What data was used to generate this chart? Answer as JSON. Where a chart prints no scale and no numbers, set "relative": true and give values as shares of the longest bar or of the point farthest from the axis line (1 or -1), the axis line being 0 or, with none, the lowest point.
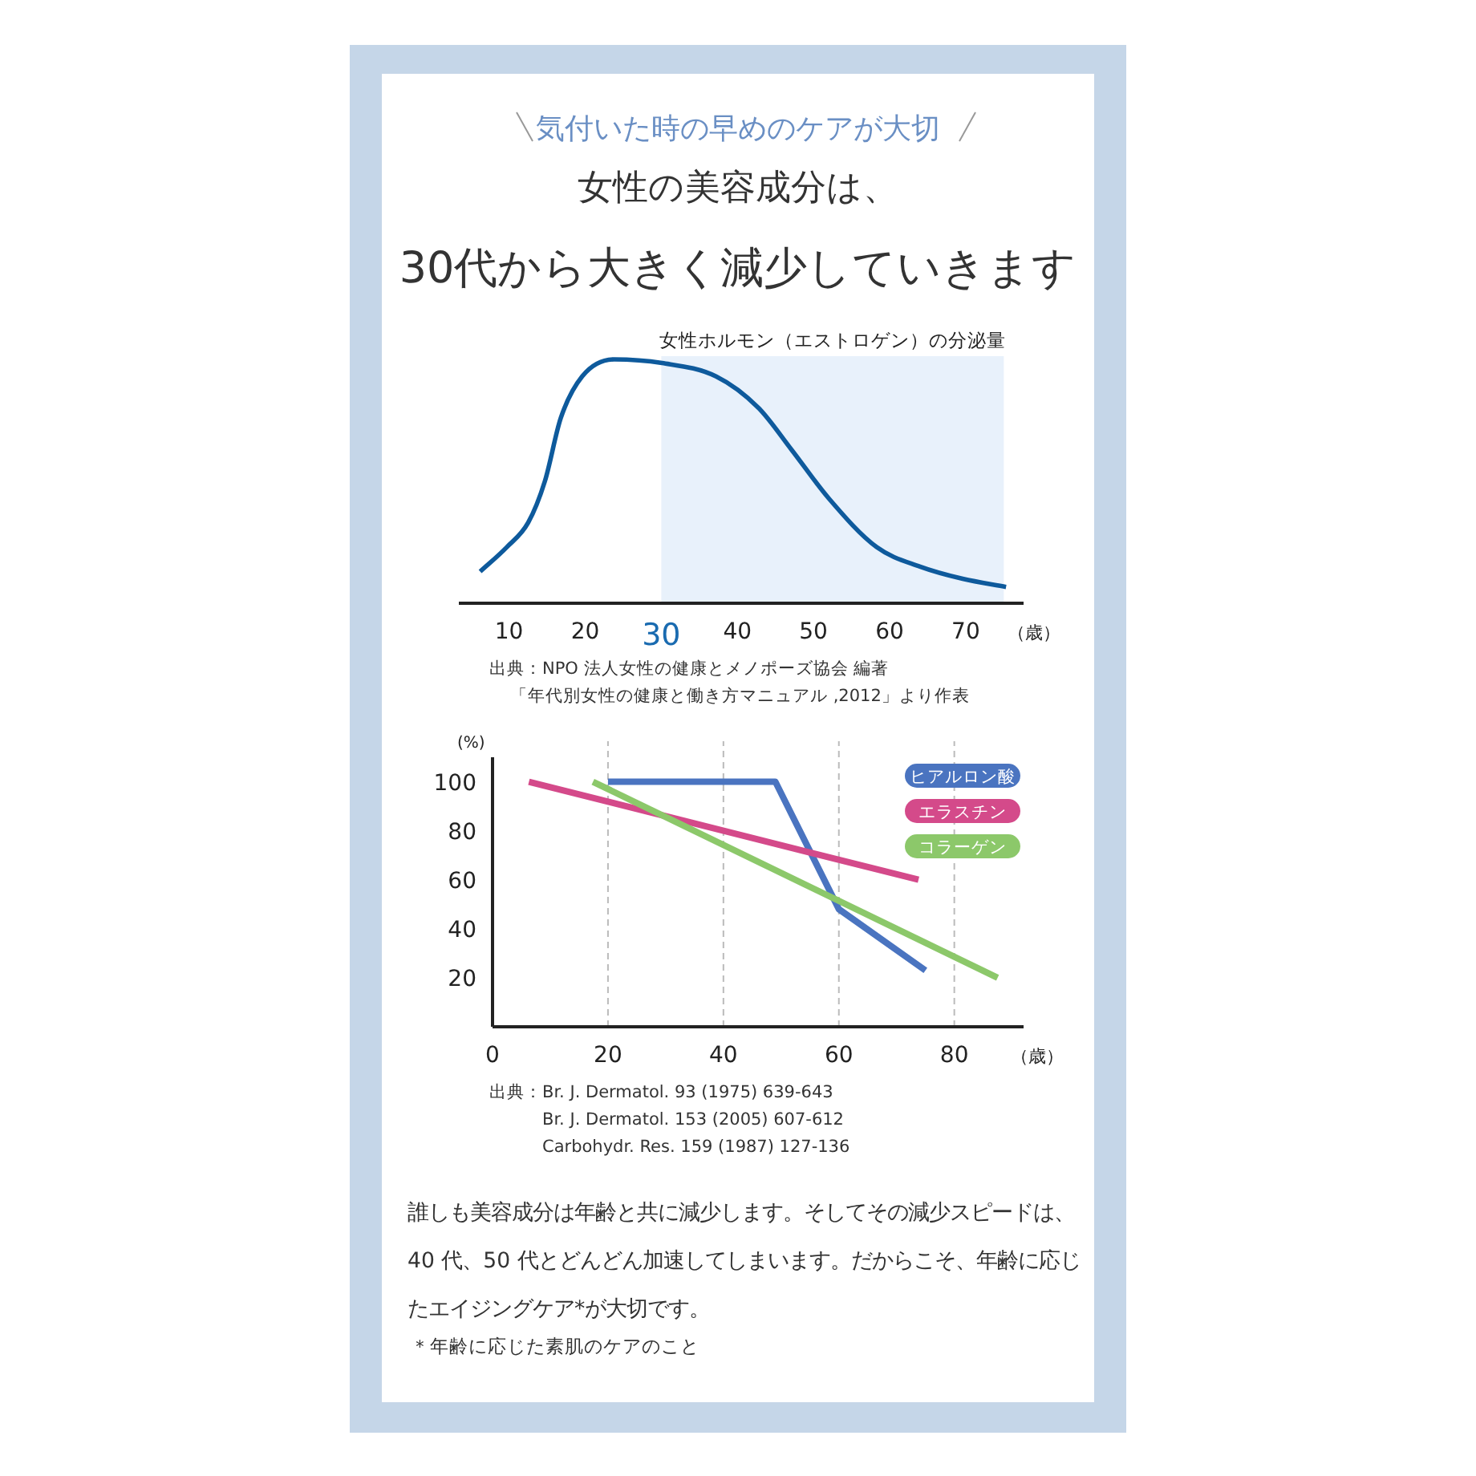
{
  "chart_data": [
    {
      "type": "line",
      "subtitle": "気付いた時の早めのケアが大切",
      "title": "女性の美容成分は、\n30代から大きく減少していきます",
      "relative": true,
      "xlabel": "（歳）",
      "xlim": [
        3.4,
        77.6
      ],
      "xticks": [
        10,
        20,
        30,
        40,
        50,
        60,
        70
      ],
      "bands": [
        {
          "axis": "x",
          "from": 30,
          "to": 75,
          "label": "女性ホルモン（エストロゲン）の分泌量",
          "color": "#e8f1fb"
        }
      ],
      "series": [
        {
          "color": "#0e5a9c",
          "x": [
            6.2,
            9.7,
            12.5,
            14.7,
            16.8,
            19.6,
            23.8,
            30.1,
            37.2,
            42.8,
            47.1,
            52.0,
            58.3,
            64.0,
            69.6,
            75.3
          ],
          "values": [
            0.13,
            0.23,
            0.33,
            0.5,
            0.76,
            0.93,
            1.0,
            0.985,
            0.93,
            0.8,
            0.63,
            0.43,
            0.23,
            0.15,
            0.1,
            0.067
          ]
        }
      ],
      "annotations": [
        "出典：NPO 法人女性の健康とメノポーズ協会 編著",
        "「年代別女性の健康と働き方マニュアル ,2012」より作表"
      ]
    },
    {
      "type": "line",
      "ylabel": "(%)",
      "xlabel": "（歳）",
      "xlim": [
        0,
        92
      ],
      "ylim": [
        0,
        110
      ],
      "xticks": [
        0,
        20,
        40,
        60,
        80
      ],
      "yticks": [
        20,
        40,
        60,
        80,
        100
      ],
      "grid": "x",
      "legend": "top right",
      "series": [
        {
          "name": "ヒアルロン酸",
          "color": "#4a74c0",
          "x": [
            20,
            49,
            60,
            75
          ],
          "values": [
            100,
            100,
            48,
            23
          ]
        },
        {
          "name": "エラスチン",
          "color": "#d44a8a",
          "x": [
            6.3,
            73.8
          ],
          "values": [
            100,
            60
          ]
        },
        {
          "name": "コラーゲン",
          "color": "#8cc86a",
          "x": [
            17.4,
            87.5
          ],
          "values": [
            100,
            20
          ]
        }
      ],
      "annotations": [
        "出典：Br. J. Dermatol. 93 (1975) 639-643",
        "Br. J. Dermatol. 153 (2005) 607-612",
        "Carbohydr. Res. 159 (1987) 127-136"
      ]
    },
    {
      "type": "other",
      "annotations": [
        "誰しも美容成分は年齢と共に減少します。そしてその減少スピードは、40 代、50 代とどんどん加速してしまいます。だからこそ、年齢に応じたエイジングケア*が大切です。",
        "＊年齢に応じた素肌のケアのこと"
      ]
    }
  ]
}
